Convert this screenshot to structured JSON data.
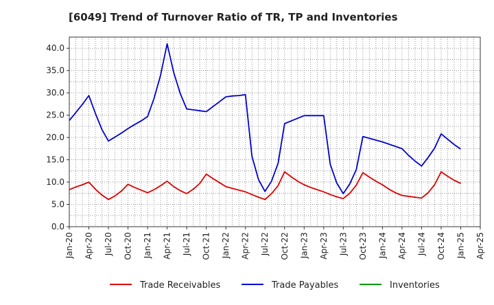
{
  "chart_data": {
    "type": "line",
    "title": "[6049]  Trend of Turnover Ratio of TR, TP and Inventories",
    "xlabel": "",
    "ylabel": "",
    "ylim": [
      0,
      42.5
    ],
    "y_ticks": [
      0.0,
      5.0,
      10.0,
      15.0,
      20.0,
      25.0,
      30.0,
      35.0,
      40.0
    ],
    "y_tick_labels": [
      "0.0",
      "5.0",
      "10.0",
      "15.0",
      "20.0",
      "25.0",
      "30.0",
      "35.0",
      "40.0"
    ],
    "x_tick_labels": [
      "Jan-20",
      "Apr-20",
      "Jul-20",
      "Oct-20",
      "Jan-21",
      "Apr-21",
      "Jul-21",
      "Oct-21",
      "Jan-22",
      "Apr-22",
      "Jul-22",
      "Oct-22",
      "Jan-23",
      "Apr-23",
      "Jul-23",
      "Oct-23",
      "Jan-24",
      "Apr-24",
      "Jul-24",
      "Oct-24",
      "Jan-25",
      "Apr-25"
    ],
    "x_range_months": [
      "Jan-20",
      "Apr-25"
    ],
    "grid": true,
    "legend_position": "bottom",
    "series": [
      {
        "name": "Trade Receivables",
        "color": "#dd0000",
        "points": [
          [
            "Jan-20",
            8.3
          ],
          [
            "Feb-20",
            8.9
          ],
          [
            "Mar-20",
            9.4
          ],
          [
            "Apr-20",
            10.0
          ],
          [
            "May-20",
            8.4
          ],
          [
            "Jun-20",
            7.1
          ],
          [
            "Jul-20",
            6.1
          ],
          [
            "Aug-20",
            6.9
          ],
          [
            "Sep-20",
            8.0
          ],
          [
            "Oct-20",
            9.5
          ],
          [
            "Nov-20",
            8.8
          ],
          [
            "Dec-20",
            8.2
          ],
          [
            "Jan-21",
            7.6
          ],
          [
            "Feb-21",
            8.3
          ],
          [
            "Mar-21",
            9.2
          ],
          [
            "Apr-21",
            10.2
          ],
          [
            "May-21",
            9.0
          ],
          [
            "Jun-21",
            8.1
          ],
          [
            "Jul-21",
            7.4
          ],
          [
            "Aug-21",
            8.4
          ],
          [
            "Sep-21",
            9.7
          ],
          [
            "Oct-21",
            11.8
          ],
          [
            "Nov-21",
            10.8
          ],
          [
            "Dec-21",
            9.9
          ],
          [
            "Jan-22",
            9.0
          ],
          [
            "Feb-22",
            8.6
          ],
          [
            "Mar-22",
            8.2
          ],
          [
            "Apr-22",
            7.8
          ],
          [
            "May-22",
            7.2
          ],
          [
            "Jun-22",
            6.6
          ],
          [
            "Jul-22",
            6.1
          ],
          [
            "Aug-22",
            7.4
          ],
          [
            "Sep-22",
            9.2
          ],
          [
            "Oct-22",
            12.3
          ],
          [
            "Nov-22",
            11.2
          ],
          [
            "Dec-22",
            10.2
          ],
          [
            "Jan-23",
            9.4
          ],
          [
            "Feb-23",
            8.8
          ],
          [
            "Mar-23",
            8.3
          ],
          [
            "Apr-23",
            7.8
          ],
          [
            "May-23",
            7.2
          ],
          [
            "Jun-23",
            6.7
          ],
          [
            "Jul-23",
            6.3
          ],
          [
            "Aug-23",
            7.5
          ],
          [
            "Sep-23",
            9.3
          ],
          [
            "Oct-23",
            12.1
          ],
          [
            "Nov-23",
            11.1
          ],
          [
            "Dec-23",
            10.2
          ],
          [
            "Jan-24",
            9.4
          ],
          [
            "Feb-24",
            8.4
          ],
          [
            "Mar-24",
            7.6
          ],
          [
            "Apr-24",
            7.0
          ],
          [
            "May-24",
            6.8
          ],
          [
            "Jun-24",
            6.6
          ],
          [
            "Jul-24",
            6.4
          ],
          [
            "Aug-24",
            7.6
          ],
          [
            "Sep-24",
            9.4
          ],
          [
            "Oct-24",
            12.3
          ],
          [
            "Nov-24",
            11.3
          ],
          [
            "Dec-24",
            10.4
          ],
          [
            "Jan-25",
            9.7
          ]
        ]
      },
      {
        "name": "Trade Payables",
        "color": "#0000cc",
        "points": [
          [
            "Jan-20",
            23.8
          ],
          [
            "Feb-20",
            25.6
          ],
          [
            "Mar-20",
            27.4
          ],
          [
            "Apr-20",
            29.4
          ],
          [
            "May-20",
            25.4
          ],
          [
            "Jun-20",
            21.8
          ],
          [
            "Jul-20",
            19.2
          ],
          [
            "Aug-20",
            20.1
          ],
          [
            "Sep-20",
            21.0
          ],
          [
            "Oct-20",
            22.0
          ],
          [
            "Nov-20",
            22.9
          ],
          [
            "Dec-20",
            23.7
          ],
          [
            "Jan-21",
            24.7
          ],
          [
            "Feb-21",
            28.8
          ],
          [
            "Mar-21",
            34.0
          ],
          [
            "Apr-21",
            41.0
          ],
          [
            "May-21",
            34.6
          ],
          [
            "Jun-21",
            29.9
          ],
          [
            "Jul-21",
            26.4
          ],
          [
            "Aug-21",
            26.2
          ],
          [
            "Sep-21",
            26.0
          ],
          [
            "Oct-21",
            25.8
          ],
          [
            "Nov-21",
            26.9
          ],
          [
            "Dec-21",
            28.0
          ],
          [
            "Jan-22",
            29.1
          ],
          [
            "Feb-22",
            29.3
          ],
          [
            "Mar-22",
            29.4
          ],
          [
            "Apr-22",
            29.6
          ],
          [
            "May-22",
            15.8
          ],
          [
            "Jun-22",
            10.6
          ],
          [
            "Jul-22",
            7.9
          ],
          [
            "Aug-22",
            10.2
          ],
          [
            "Sep-22",
            14.2
          ],
          [
            "Oct-22",
            23.1
          ],
          [
            "Nov-22",
            23.7
          ],
          [
            "Dec-22",
            24.3
          ],
          [
            "Jan-23",
            24.9
          ],
          [
            "Feb-23",
            24.9
          ],
          [
            "Mar-23",
            24.9
          ],
          [
            "Apr-23",
            24.9
          ],
          [
            "May-23",
            14.0
          ],
          [
            "Jun-23",
            9.8
          ],
          [
            "Jul-23",
            7.4
          ],
          [
            "Aug-23",
            9.6
          ],
          [
            "Sep-23",
            12.8
          ],
          [
            "Oct-23",
            20.2
          ],
          [
            "Nov-23",
            19.8
          ],
          [
            "Dec-23",
            19.4
          ],
          [
            "Jan-24",
            19.0
          ],
          [
            "Feb-24",
            18.5
          ],
          [
            "Mar-24",
            18.0
          ],
          [
            "Apr-24",
            17.5
          ],
          [
            "May-24",
            16.0
          ],
          [
            "Jun-24",
            14.7
          ],
          [
            "Jul-24",
            13.6
          ],
          [
            "Aug-24",
            15.5
          ],
          [
            "Sep-24",
            17.6
          ],
          [
            "Oct-24",
            20.8
          ],
          [
            "Nov-24",
            19.6
          ],
          [
            "Dec-24",
            18.4
          ],
          [
            "Jan-25",
            17.4
          ]
        ]
      },
      {
        "name": "Inventories",
        "color": "#009900",
        "points": []
      }
    ]
  }
}
